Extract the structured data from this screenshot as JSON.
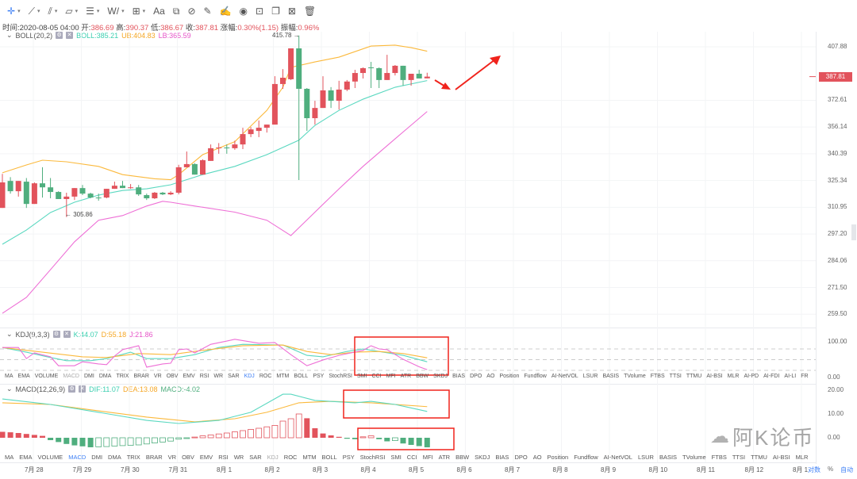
{
  "toolbar": {
    "items": [
      {
        "name": "crosshair-tool",
        "glyph": "✛",
        "caret": true,
        "active": true
      },
      {
        "name": "trendline-tool",
        "glyph": "⟋",
        "caret": true
      },
      {
        "name": "parallel-channel-tool",
        "glyph": "⫽",
        "caret": true
      },
      {
        "name": "rectangle-tool",
        "glyph": "▱",
        "caret": true
      },
      {
        "name": "horizontal-lines-tool",
        "glyph": "☰",
        "caret": true
      },
      {
        "name": "wave-tool",
        "glyph": "W/",
        "caret": true
      },
      {
        "name": "measure-tool",
        "glyph": "⊞",
        "caret": true
      },
      {
        "name": "text-tool",
        "glyph": "Aa",
        "caret": false
      },
      {
        "name": "fibonacci-tool",
        "glyph": "⧉",
        "caret": false
      },
      {
        "name": "magnet-tool",
        "glyph": "⊘",
        "caret": false
      },
      {
        "name": "ruler-tool",
        "glyph": "✎",
        "caret": false
      },
      {
        "name": "brush-tool",
        "glyph": "✍",
        "caret": false
      },
      {
        "name": "eye-tool",
        "glyph": "◉",
        "caret": false
      },
      {
        "name": "lock-tool",
        "glyph": "⊡",
        "caret": false
      },
      {
        "name": "copy-tool",
        "glyph": "❐",
        "caret": false
      },
      {
        "name": "screenshot-tool",
        "glyph": "⊠",
        "caret": false
      },
      {
        "name": "delete-tool",
        "glyph": "🗑",
        "caret": false
      }
    ]
  },
  "info": {
    "time_label": "时间:",
    "time": "2020-08-05 04:00",
    "open_label": "开:",
    "open": "386.69",
    "high_label": "高:",
    "high": "390.37",
    "low_label": "低:",
    "low": "386.67",
    "close_label": "收:",
    "close": "387.81",
    "change_label": "涨幅:",
    "change": "0.30%(1.15)",
    "amp_label": "振幅:",
    "amp": "0.96%"
  },
  "boll": {
    "title": "BOLL(20,2)",
    "mid": "BOLL:385.21",
    "ub": "UB:404.83",
    "lb": "LB:365.59"
  },
  "kdj": {
    "title": "KDJ(9,3,3)",
    "k": "K:44.07",
    "d": "D:55.18",
    "j": "J:21.86"
  },
  "macd": {
    "title": "MACD(12,26,9)",
    "dif": "DIF:11.07",
    "dea": "DEA:13.08",
    "macd": "MACD:-4.02"
  },
  "colors": {
    "up": "#e2535c",
    "down": "#4fae7e",
    "boll": "#5ad8c0",
    "ub": "#fbb93c",
    "lb": "#ee6fd6",
    "k": "#5ad8c0",
    "d": "#fbb93c",
    "j": "#ee6fd6",
    "annotation": "#f0231c"
  },
  "price_axis": {
    "scale": "log",
    "labels": [
      "407.88",
      "372.61",
      "356.14",
      "340.39",
      "325.34",
      "310.95",
      "297.20",
      "284.06",
      "271.50",
      "259.50"
    ],
    "last_price": "387.81"
  },
  "max_label": "415.78",
  "min_label": "305.86",
  "kdj_axis": [
    "100.00",
    "0.00"
  ],
  "macd_axis": [
    "20.00",
    "10.00",
    "0.00"
  ],
  "candles": [
    [
      310.6,
      329.0,
      310.6,
      324.3
    ],
    [
      325.1,
      327.2,
      318.2,
      319.5
    ],
    [
      319.5,
      325.1,
      316.6,
      325.1
    ],
    [
      324.7,
      326.7,
      310.6,
      312.7
    ],
    [
      312.7,
      324.3,
      312.7,
      323.8
    ],
    [
      323.8,
      332.7,
      316.1,
      321.6
    ],
    [
      321.6,
      326.7,
      315.7,
      319.1
    ],
    [
      319.1,
      319.5,
      315.3,
      315.3
    ],
    [
      315.3,
      318.7,
      305.86,
      316.6
    ],
    [
      316.6,
      321.2,
      314.8,
      321.2
    ],
    [
      321.2,
      322.9,
      317.4,
      318.2
    ],
    [
      318.2,
      318.7,
      315.7,
      316.1
    ],
    [
      316.1,
      318.2,
      314.4,
      315.7
    ],
    [
      316.1,
      320.8,
      315.7,
      320.8
    ],
    [
      320.8,
      324.7,
      320.8,
      322.5
    ],
    [
      322.5,
      325.1,
      321.2,
      321.2
    ],
    [
      321.2,
      323.4,
      320.8,
      321.6
    ],
    [
      321.6,
      322.9,
      317.0,
      317.8
    ],
    [
      317.4,
      318.2,
      314.8,
      315.7
    ],
    [
      315.7,
      319.1,
      315.3,
      318.7
    ],
    [
      318.7,
      319.1,
      317.4,
      317.8
    ],
    [
      317.8,
      319.5,
      317.4,
      318.7
    ],
    [
      318.7,
      334.1,
      317.8,
      332.7
    ],
    [
      332.7,
      341.7,
      332.7,
      334.5
    ],
    [
      334.5,
      335.0,
      328.6,
      328.6
    ],
    [
      328.6,
      337.2,
      328.6,
      336.7
    ],
    [
      336.3,
      345.8,
      336.3,
      343.6
    ],
    [
      343.6,
      346.6,
      340.4,
      344.0
    ],
    [
      344.0,
      345.8,
      340.4,
      343.6
    ],
    [
      343.6,
      348.0,
      342.7,
      345.8
    ],
    [
      345.8,
      355.7,
      343.1,
      351.9
    ],
    [
      351.9,
      356.1,
      350.1,
      354.7
    ],
    [
      353.8,
      360.1,
      350.1,
      355.7
    ],
    [
      355.7,
      357.6,
      352.8,
      357.6
    ],
    [
      357.6,
      388.1,
      357.6,
      383.0
    ],
    [
      383.0,
      392.8,
      379.9,
      387.1
    ],
    [
      386.1,
      406.8,
      385.6,
      406.8
    ],
    [
      406.8,
      415.78,
      325.6,
      379.9
    ],
    [
      379.9,
      380.4,
      353.8,
      361.5
    ],
    [
      361.5,
      372.3,
      357.6,
      367.8
    ],
    [
      367.8,
      388.1,
      367.8,
      378.9
    ],
    [
      378.9,
      381.0,
      367.8,
      372.3
    ],
    [
      372.3,
      385.1,
      366.8,
      379.4
    ],
    [
      379.4,
      385.6,
      378.4,
      384.6
    ],
    [
      384.6,
      392.3,
      380.4,
      390.2
    ],
    [
      390.2,
      393.9,
      386.6,
      393.4
    ],
    [
      393.9,
      397.6,
      380.4,
      393.4
    ],
    [
      393.4,
      393.9,
      380.4,
      385.6
    ],
    [
      385.6,
      402.4,
      385.6,
      390.2
    ],
    [
      390.2,
      395.5,
      388.6,
      395.0
    ],
    [
      395.0,
      395.0,
      381.9,
      385.6
    ],
    [
      385.6,
      389.7,
      381.9,
      389.7
    ],
    [
      389.7,
      392.3,
      386.6,
      386.6
    ],
    [
      386.69,
      390.37,
      386.67,
      387.81
    ]
  ],
  "boll_ub": [
    [
      0,
      329.6
    ],
    [
      3,
      334.0
    ],
    [
      5,
      336.7
    ],
    [
      8,
      335.8
    ],
    [
      12,
      333.2
    ],
    [
      15,
      328.6
    ],
    [
      19,
      326.3
    ],
    [
      21,
      325.8
    ],
    [
      22,
      328.6
    ],
    [
      25,
      339.9
    ],
    [
      29,
      347.4
    ],
    [
      33,
      366.3
    ],
    [
      35,
      380.9
    ],
    [
      36,
      393.9
    ],
    [
      39,
      397.6
    ],
    [
      42,
      400.8
    ],
    [
      46,
      408.4
    ],
    [
      49,
      409.0
    ],
    [
      51,
      407.3
    ],
    [
      53,
      404.83
    ]
  ],
  "boll_mid": [
    [
      0,
      292.1
    ],
    [
      3,
      299.2
    ],
    [
      6,
      308.2
    ],
    [
      9,
      313.6
    ],
    [
      12,
      317.4
    ],
    [
      15,
      319.9
    ],
    [
      18,
      320.8
    ],
    [
      21,
      323.0
    ],
    [
      25,
      328.6
    ],
    [
      29,
      333.2
    ],
    [
      33,
      339.9
    ],
    [
      37,
      348.3
    ],
    [
      39,
      357.1
    ],
    [
      42,
      366.3
    ],
    [
      45,
      373.3
    ],
    [
      49,
      380.9
    ],
    [
      53,
      385.21
    ]
  ],
  "boll_lb": [
    [
      0,
      259.9
    ],
    [
      3,
      267.0
    ],
    [
      6,
      279.8
    ],
    [
      9,
      293.3
    ],
    [
      12,
      304.2
    ],
    [
      15,
      306.6
    ],
    [
      18,
      311.6
    ],
    [
      20,
      314.1
    ],
    [
      21,
      313.6
    ],
    [
      24,
      311.6
    ],
    [
      29,
      308.4
    ],
    [
      33,
      304.2
    ],
    [
      36,
      296.4
    ],
    [
      39,
      308.4
    ],
    [
      42,
      320.8
    ],
    [
      45,
      333.2
    ],
    [
      49,
      349.1
    ],
    [
      53,
      365.59
    ]
  ],
  "kdj_k": [
    [
      0,
      84
    ],
    [
      3,
      71
    ],
    [
      6,
      56
    ],
    [
      8,
      47
    ],
    [
      11,
      47
    ],
    [
      13,
      53
    ],
    [
      16,
      71
    ],
    [
      18,
      53
    ],
    [
      21,
      53
    ],
    [
      24,
      64
    ],
    [
      27,
      84
    ],
    [
      30,
      93
    ],
    [
      35,
      91
    ],
    [
      38,
      62
    ],
    [
      40,
      58
    ],
    [
      43,
      73
    ],
    [
      45,
      80
    ],
    [
      47,
      73
    ],
    [
      50,
      62
    ],
    [
      53,
      44.07
    ]
  ],
  "kdj_d": [
    [
      0,
      84
    ],
    [
      5,
      71
    ],
    [
      10,
      58
    ],
    [
      13,
      56
    ],
    [
      17,
      67
    ],
    [
      21,
      64
    ],
    [
      25,
      76
    ],
    [
      30,
      89
    ],
    [
      35,
      91
    ],
    [
      38,
      73
    ],
    [
      41,
      64
    ],
    [
      44,
      71
    ],
    [
      47,
      73
    ],
    [
      50,
      67
    ],
    [
      53,
      55.18
    ]
  ],
  "kdj_j": [
    [
      0,
      84
    ],
    [
      2,
      84
    ],
    [
      3,
      53
    ],
    [
      4,
      69
    ],
    [
      6,
      58
    ],
    [
      7,
      33
    ],
    [
      9,
      33
    ],
    [
      10,
      44
    ],
    [
      12,
      38
    ],
    [
      13,
      36
    ],
    [
      14,
      60
    ],
    [
      15,
      78
    ],
    [
      17,
      89
    ],
    [
      18,
      29
    ],
    [
      20,
      38
    ],
    [
      21,
      40
    ],
    [
      22,
      78
    ],
    [
      23,
      80
    ],
    [
      24,
      69
    ],
    [
      26,
      93
    ],
    [
      28,
      102
    ],
    [
      29,
      107
    ],
    [
      32,
      96
    ],
    [
      34,
      98
    ],
    [
      36,
      64
    ],
    [
      38,
      33
    ],
    [
      40,
      49
    ],
    [
      42,
      62
    ],
    [
      45,
      76
    ],
    [
      46,
      89
    ],
    [
      47,
      80
    ],
    [
      48,
      78
    ],
    [
      50,
      51
    ],
    [
      52,
      30
    ],
    [
      53,
      21.86
    ]
  ],
  "macd_dif": [
    [
      0,
      16.3
    ],
    [
      6,
      14
    ],
    [
      12,
      10.7
    ],
    [
      18,
      7.3
    ],
    [
      22,
      6
    ],
    [
      27,
      7.3
    ],
    [
      31,
      10.7
    ],
    [
      35,
      18.3
    ],
    [
      36,
      18.3
    ],
    [
      39,
      15.7
    ],
    [
      44,
      14.7
    ],
    [
      46,
      15.3
    ],
    [
      49,
      14
    ],
    [
      53,
      11.07
    ]
  ],
  "macd_dea": [
    [
      0,
      14.7
    ],
    [
      6,
      14
    ],
    [
      12,
      11.3
    ],
    [
      18,
      8.7
    ],
    [
      24,
      6.7
    ],
    [
      29,
      8
    ],
    [
      33,
      10.7
    ],
    [
      37,
      14.7
    ],
    [
      41,
      15.3
    ],
    [
      46,
      14.7
    ],
    [
      53,
      13.08
    ]
  ],
  "macd_hist": [
    2.5,
    2.3,
    2.0,
    1.6,
    1.2,
    0.8,
    -1.0,
    -1.8,
    -2.6,
    -3.2,
    -3.6,
    -4.0,
    -3.8,
    -3.7,
    -3.5,
    -3.3,
    -3.2,
    -3.0,
    -2.6,
    -2.2,
    -1.8,
    -1.4,
    -0.6,
    -0.2,
    0.3,
    0.8,
    1.2,
    1.6,
    2.0,
    2.5,
    3.0,
    3.5,
    4.0,
    4.6,
    5.2,
    7.0,
    8.0,
    10.0,
    8.2,
    4.0,
    1.8,
    1.0,
    0.4,
    -0.4,
    -0.6,
    0.4,
    0.8,
    -0.6,
    -1.5,
    -1.2,
    -2.4,
    -3.0,
    -3.5,
    -4.02
  ],
  "tabs_kdj": [
    "MA",
    "EMA",
    "VOLUME",
    "MACD",
    "DMI",
    "DMA",
    "TRIX",
    "BRAR",
    "VR",
    "OBV",
    "EMV",
    "RSI",
    "WR",
    "SAR",
    "KDJ",
    "ROC",
    "MTM",
    "BOLL",
    "PSY",
    "StochRSI",
    "SMI",
    "CCI",
    "MFI",
    "ATR",
    "BBW",
    "SKDJ",
    "BIAS",
    "DPO",
    "AO",
    "Position",
    "Fundflow",
    "AI-NetVOL",
    "LSUR",
    "BASIS",
    "TVolume",
    "FTBS",
    "TTSI",
    "TTMU",
    "AI-BSI",
    "MLR",
    "AI-PD",
    "AI-FDI",
    "AI-LI",
    "FR"
  ],
  "tabs_macd": [
    "MA",
    "EMA",
    "VOLUME",
    "MACD",
    "DMI",
    "DMA",
    "TRIX",
    "BRAR",
    "VR",
    "OBV",
    "EMV",
    "RSI",
    "WR",
    "SAR",
    "KDJ",
    "ROC",
    "MTM",
    "BOLL",
    "PSY",
    "StochRSI",
    "SMI",
    "CCI",
    "MFI",
    "ATR",
    "BBW",
    "SKDJ",
    "BIAS",
    "DPO",
    "AO",
    "Position",
    "Fundflow",
    "AI-NetVOL",
    "LSUR",
    "BASIS",
    "TVolume",
    "FTBS",
    "TTSI",
    "TTMU",
    "AI-BSI",
    "MLR"
  ],
  "time_axis": [
    "7月 28",
    "7月 29",
    "7月 30",
    "7月 31",
    "8月 1",
    "8月 2",
    "8月 3",
    "8月 4",
    "8月 5",
    "8月 6",
    "8月 7",
    "8月 8",
    "8月 9",
    "8月 10",
    "8月 11",
    "8月 12",
    "8月 1"
  ],
  "axis_controls": {
    "log": "对数",
    "percent": "%",
    "auto": "自动"
  },
  "watermark": "阿K论币"
}
